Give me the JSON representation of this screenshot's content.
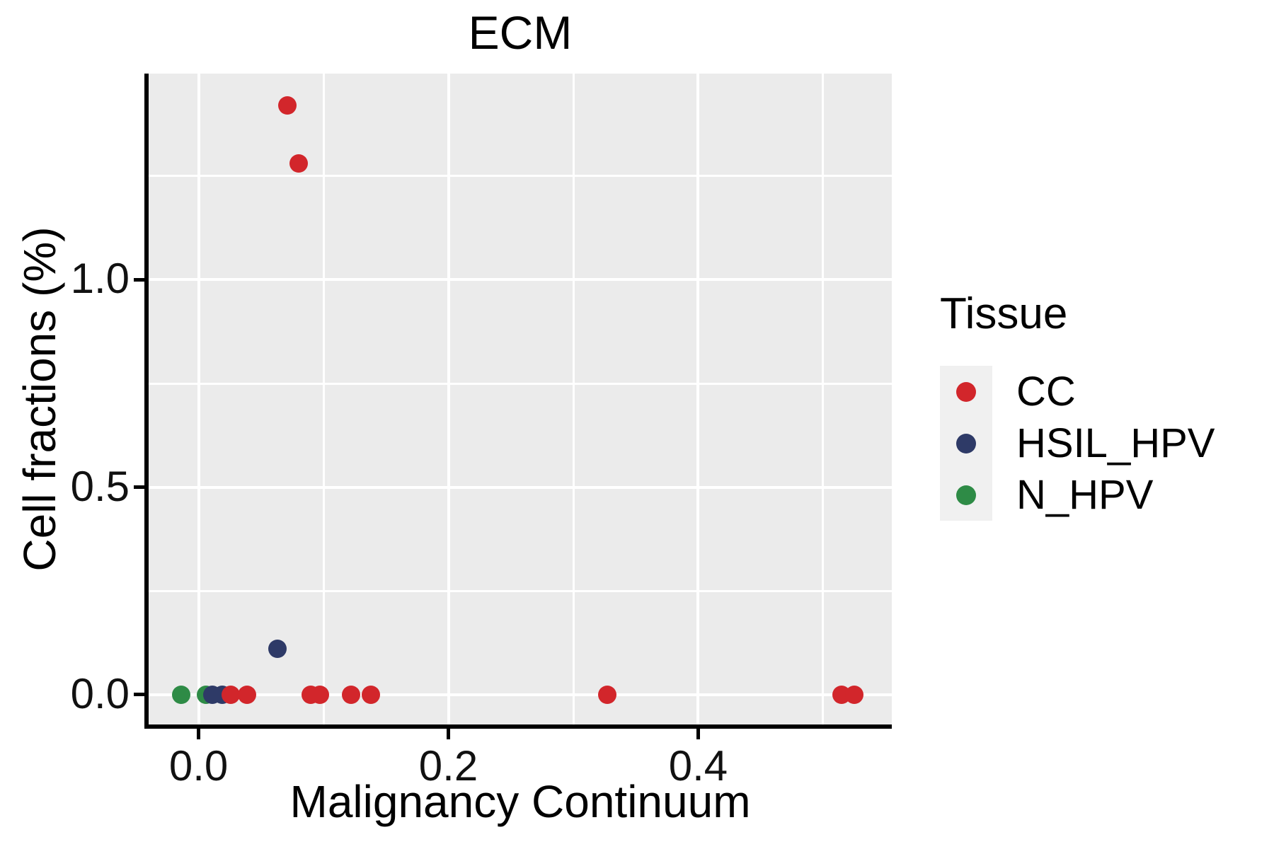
{
  "chart_data": {
    "type": "scatter",
    "title": "ECM",
    "xlabel": "Malignancy Continuum",
    "ylabel": "Cell fractions (%)",
    "xlim": [
      -0.04,
      0.555
    ],
    "ylim": [
      -0.072,
      1.497
    ],
    "grid": true,
    "panel_bg": "#ebebeb",
    "gridline_color": "#ffffff",
    "axis_color": "#000000",
    "x_ticks": [
      {
        "value": 0.0,
        "label": "0.0"
      },
      {
        "value": 0.2,
        "label": "0.2"
      },
      {
        "value": 0.4,
        "label": "0.4"
      }
    ],
    "y_ticks": [
      {
        "value": 0.0,
        "label": "0.0"
      },
      {
        "value": 0.5,
        "label": "0.5"
      },
      {
        "value": 1.0,
        "label": "1.0"
      }
    ],
    "x_minor": [
      0.1,
      0.3,
      0.5
    ],
    "y_minor": [
      0.25,
      0.75,
      1.25
    ],
    "legend": {
      "title": "Tissue",
      "position": "right",
      "key_bg": "#f0f0f0",
      "entries": [
        {
          "label": "CC",
          "color": "#d2262b"
        },
        {
          "label": "HSIL_HPV",
          "color": "#2e3a67"
        },
        {
          "label": "N_HPV",
          "color": "#2e8b46"
        }
      ]
    },
    "series": [
      {
        "name": "N_HPV",
        "color": "#2e8b46",
        "points": [
          [
            -0.014,
            0.0
          ],
          [
            0.006,
            0.0
          ]
        ]
      },
      {
        "name": "HSIL_HPV",
        "color": "#2e3a67",
        "points": [
          [
            0.011,
            0.0
          ],
          [
            0.019,
            0.0
          ],
          [
            0.063,
            0.111
          ]
        ]
      },
      {
        "name": "CC",
        "color": "#d2262b",
        "points": [
          [
            0.026,
            0.0
          ],
          [
            0.039,
            0.0
          ],
          [
            0.071,
            1.42
          ],
          [
            0.08,
            1.28
          ],
          [
            0.09,
            0.0
          ],
          [
            0.097,
            0.0
          ],
          [
            0.122,
            0.0
          ],
          [
            0.138,
            0.0
          ],
          [
            0.327,
            0.0
          ],
          [
            0.515,
            0.0
          ],
          [
            0.525,
            0.0
          ]
        ]
      }
    ]
  }
}
